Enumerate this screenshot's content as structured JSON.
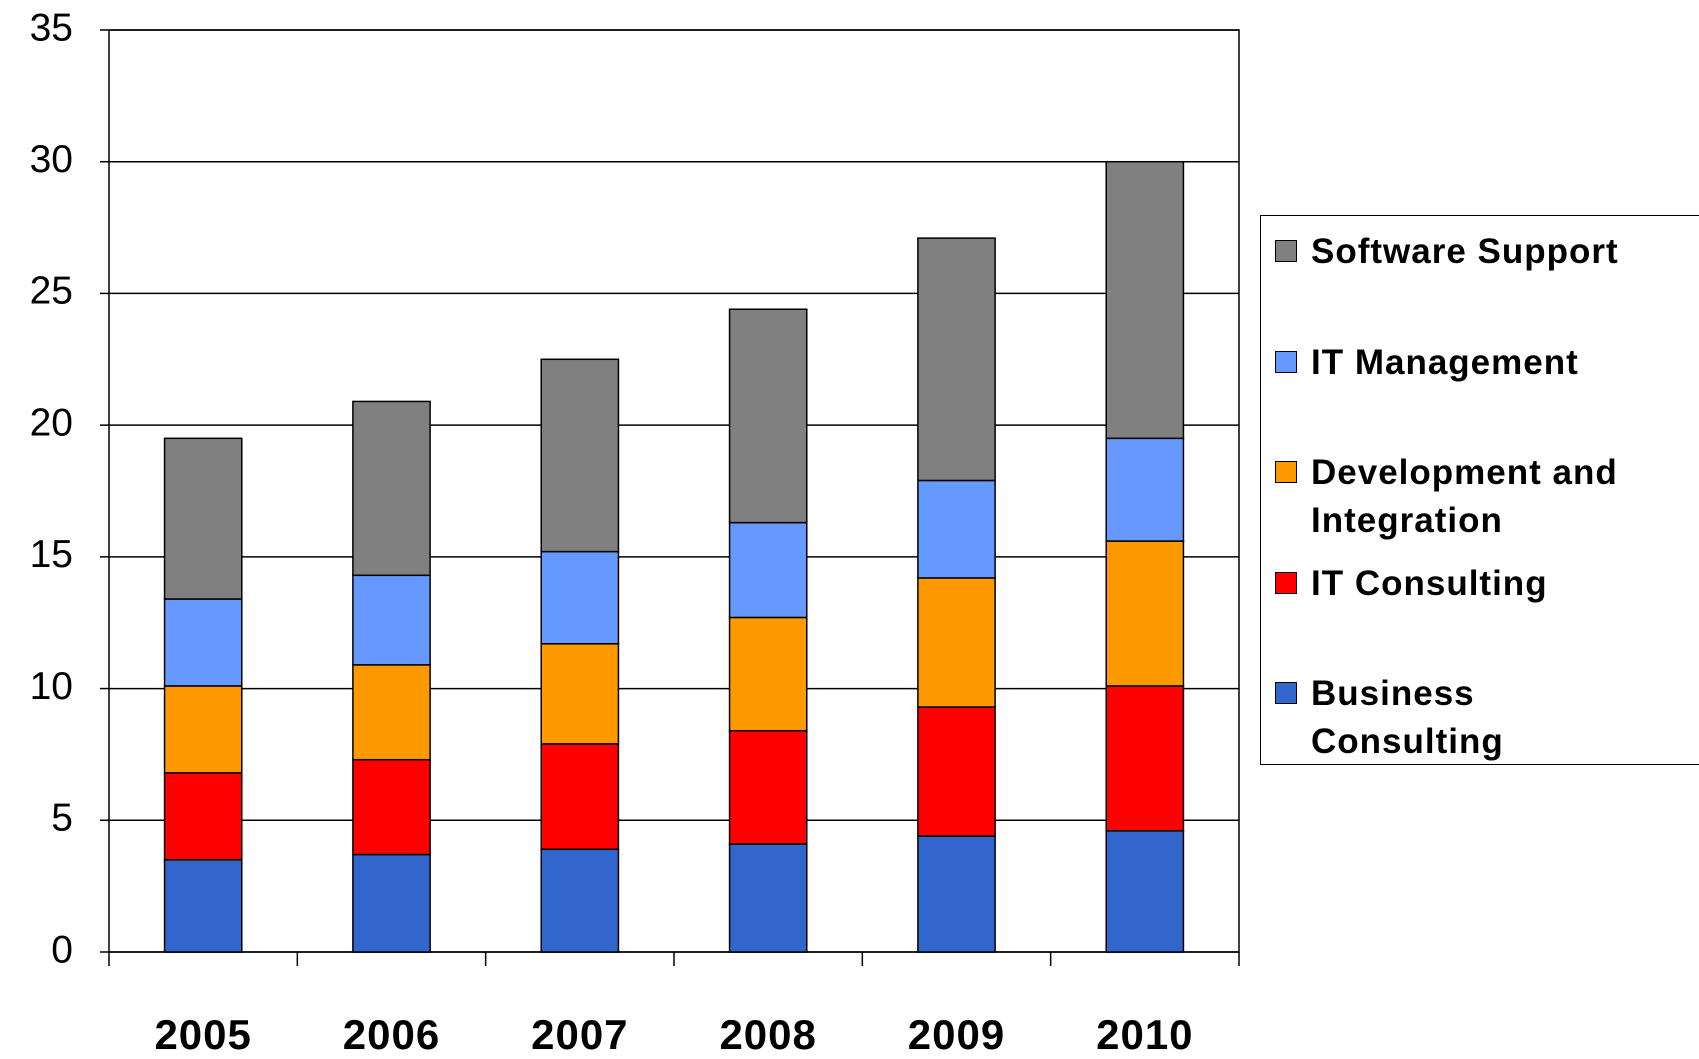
{
  "chart_data": {
    "type": "stacked_bar",
    "categories": [
      "2005",
      "2006",
      "2007",
      "2008",
      "2009",
      "2010"
    ],
    "series": [
      {
        "name": "Business Consulting",
        "color": "#3366cc",
        "values": [
          3.5,
          3.7,
          3.9,
          4.1,
          4.4,
          4.6
        ]
      },
      {
        "name": "IT Consulting",
        "color": "#ff0000",
        "values": [
          3.3,
          3.6,
          4.0,
          4.3,
          4.9,
          5.5
        ]
      },
      {
        "name": "Development and Integration",
        "color": "#ff9900",
        "values": [
          3.3,
          3.6,
          3.8,
          4.3,
          4.9,
          5.5
        ]
      },
      {
        "name": "IT Management",
        "color": "#6699ff",
        "values": [
          3.3,
          3.4,
          3.5,
          3.6,
          3.7,
          3.9
        ]
      },
      {
        "name": "Software Support",
        "color": "#808080",
        "values": [
          6.1,
          6.6,
          7.3,
          8.1,
          9.2,
          10.5
        ]
      }
    ],
    "ylim": [
      0,
      35
    ],
    "yticks": [
      0,
      5,
      10,
      15,
      20,
      25,
      30,
      35
    ],
    "grid": true
  }
}
